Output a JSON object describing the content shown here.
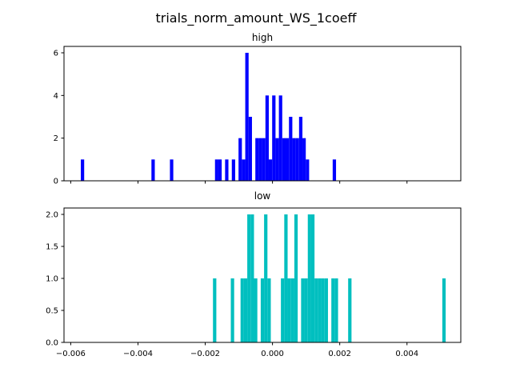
{
  "figure": {
    "title": "trials_norm_amount_WS_1coeff",
    "background": "#ffffff"
  },
  "chart_data": [
    {
      "type": "bar",
      "title": "high",
      "xlabel": "",
      "ylabel": "",
      "color": "#0000ff",
      "xlim": [
        -0.0062,
        0.0056
      ],
      "ylim": [
        0,
        6.3
      ],
      "x_ticks": [
        -0.006,
        -0.004,
        -0.002,
        0.0,
        0.002,
        0.004
      ],
      "x_tick_labels_shown": false,
      "y_ticks": [
        0,
        2,
        4,
        6
      ],
      "y_tick_labels": [
        "0",
        "2",
        "4",
        "6"
      ],
      "bin_width": 9.96e-05,
      "bars": [
        {
          "x": -0.00565,
          "y": 1
        },
        {
          "x": -0.00355,
          "y": 1
        },
        {
          "x": -0.003,
          "y": 1
        },
        {
          "x": -0.00166,
          "y": 1
        },
        {
          "x": -0.00156,
          "y": 1
        },
        {
          "x": -0.00136,
          "y": 1
        },
        {
          "x": -0.00116,
          "y": 1
        },
        {
          "x": -0.00096,
          "y": 2
        },
        {
          "x": -0.00086,
          "y": 1
        },
        {
          "x": -0.00076,
          "y": 6
        },
        {
          "x": -0.00066,
          "y": 3
        },
        {
          "x": -0.00046,
          "y": 2
        },
        {
          "x": -0.00036,
          "y": 2
        },
        {
          "x": -0.00026,
          "y": 2
        },
        {
          "x": -0.00016,
          "y": 4
        },
        {
          "x": -6e-05,
          "y": 1
        },
        {
          "x": 4e-05,
          "y": 4
        },
        {
          "x": 0.00014,
          "y": 2
        },
        {
          "x": 0.00024,
          "y": 4
        },
        {
          "x": 0.00034,
          "y": 2
        },
        {
          "x": 0.00044,
          "y": 2
        },
        {
          "x": 0.00054,
          "y": 3
        },
        {
          "x": 0.00064,
          "y": 2
        },
        {
          "x": 0.00074,
          "y": 2
        },
        {
          "x": 0.00084,
          "y": 3
        },
        {
          "x": 0.00094,
          "y": 2
        },
        {
          "x": 0.00104,
          "y": 1
        },
        {
          "x": 0.00184,
          "y": 1
        }
      ]
    },
    {
      "type": "bar",
      "title": "low",
      "xlabel": "",
      "ylabel": "",
      "color": "#00bfbf",
      "xlim": [
        -0.0062,
        0.0056
      ],
      "ylim": [
        0,
        2.1
      ],
      "x_ticks": [
        -0.006,
        -0.004,
        -0.002,
        0.0,
        0.002,
        0.004
      ],
      "x_tick_labels": [
        "−0.006",
        "−0.004",
        "−0.002",
        "0.000",
        "0.002",
        "0.004"
      ],
      "y_ticks": [
        0.0,
        0.5,
        1.0,
        1.5,
        2.0
      ],
      "y_tick_labels": [
        "0.0",
        "0.5",
        "1.0",
        "1.5",
        "2.0"
      ],
      "bin_width": 9.96e-05,
      "bars": [
        {
          "x": -0.00172,
          "y": 1
        },
        {
          "x": -0.00119,
          "y": 1
        },
        {
          "x": -0.0009,
          "y": 1
        },
        {
          "x": -0.0008,
          "y": 1
        },
        {
          "x": -0.0007,
          "y": 2
        },
        {
          "x": -0.0006,
          "y": 2
        },
        {
          "x": -0.0005,
          "y": 1
        },
        {
          "x": -0.0003,
          "y": 1
        },
        {
          "x": -0.0002,
          "y": 2
        },
        {
          "x": -0.0001,
          "y": 1
        },
        {
          "x": 0.0003,
          "y": 1
        },
        {
          "x": 0.0004,
          "y": 2
        },
        {
          "x": 0.0005,
          "y": 1
        },
        {
          "x": 0.0006,
          "y": 1
        },
        {
          "x": 0.0007,
          "y": 2
        },
        {
          "x": 0.0009,
          "y": 1
        },
        {
          "x": 0.001,
          "y": 1
        },
        {
          "x": 0.0011,
          "y": 2
        },
        {
          "x": 0.0012,
          "y": 2
        },
        {
          "x": 0.0013,
          "y": 1
        },
        {
          "x": 0.0014,
          "y": 1
        },
        {
          "x": 0.0015,
          "y": 1
        },
        {
          "x": 0.0016,
          "y": 1
        },
        {
          "x": 0.0018,
          "y": 1
        },
        {
          "x": 0.0019,
          "y": 1
        },
        {
          "x": 0.0023,
          "y": 1
        },
        {
          "x": 0.0051,
          "y": 1
        }
      ]
    }
  ]
}
